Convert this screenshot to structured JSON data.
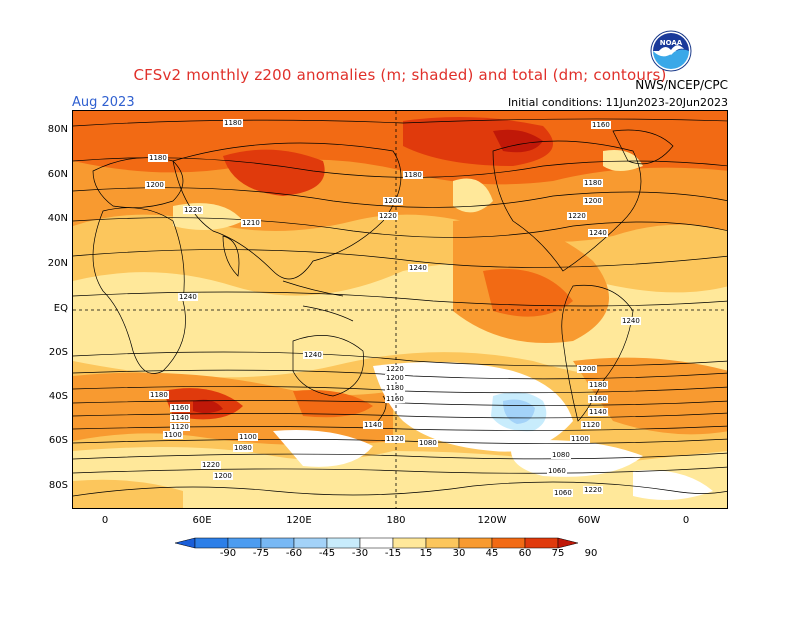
{
  "title": "CFSv2 monthly z200 anomalies (m; shaded) and total (dm; contours)",
  "month": "Aug 2023",
  "initial_conditions": "Initial conditions: 11Jun2023-20Jun2023",
  "agency": "NWS/NCEP/CPC",
  "logo_text": "NOAA",
  "lat_labels": [
    "80N",
    "60N",
    "40N",
    "20N",
    "EQ",
    "20S",
    "40S",
    "60S",
    "80S"
  ],
  "lon_labels": [
    "0",
    "60E",
    "120E",
    "180",
    "120W",
    "60W",
    "0"
  ],
  "colorbar_labels": [
    "-90",
    "-75",
    "-60",
    "-45",
    "-30",
    "-15",
    "15",
    "30",
    "45",
    "60",
    "75",
    "90"
  ],
  "colorbar_colors": [
    "#1a5ed8",
    "#2c7fe8",
    "#4c9cf0",
    "#78b8f4",
    "#a3d2f8",
    "#c8ecfc",
    "#ffffff",
    "#ffe89a",
    "#fcc65c",
    "#f89a30",
    "#f26a14",
    "#e03a0c",
    "#c01808"
  ],
  "contour_labels": [
    "1180",
    "1180",
    "1200",
    "1220",
    "1210",
    "1180",
    "1200",
    "1220",
    "1240",
    "1240",
    "1240",
    "1160",
    "1180",
    "1200",
    "1220",
    "1240",
    "1240",
    "1220",
    "1200",
    "1180",
    "1160",
    "1140",
    "1120",
    "1100",
    "1080",
    "1220",
    "1200",
    "1180",
    "1160",
    "1140",
    "1120",
    "1100",
    "1080",
    "1060",
    "1220",
    "1200",
    "1180",
    "1160",
    "1140",
    "1120",
    "1100",
    "1080",
    "1060"
  ]
}
